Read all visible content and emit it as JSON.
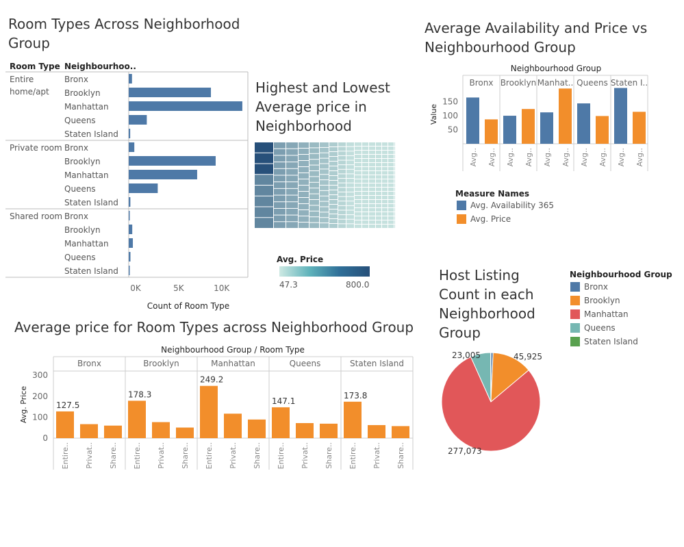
{
  "colors": {
    "blue": "#4e79a7",
    "orange": "#f28e2b",
    "red": "#e15759",
    "teal": "#76b7b2",
    "green": "#59a14f",
    "grid": "#e6e6e6"
  },
  "titles": {
    "room_types": "Room Types Across Neighborhood Group",
    "treemap": "Highest and Lowest Average price in Neighborhood",
    "availability": "Average Availability and Price vs Neighbourhood Group",
    "avg_price": "Average price for Room Types across Neighborhood Group",
    "host": "Host Listing Count in each Neighborhood Group"
  },
  "chart_data": [
    {
      "type": "bar",
      "id": "room_types",
      "col_headers": {
        "room_type": "Room Type",
        "neigh": "Neighbourhoo.."
      },
      "groups": [
        {
          "label": "Entire home/apt",
          "rows": [
            {
              "name": "Bronx",
              "value": 380
            },
            {
              "name": "Brooklyn",
              "value": 9550
            },
            {
              "name": "Manhattan",
              "value": 13200
            },
            {
              "name": "Queens",
              "value": 2100
            },
            {
              "name": "Staten Island",
              "value": 170
            }
          ]
        },
        {
          "label": "Private room",
          "rows": [
            {
              "name": "Bronx",
              "value": 650
            },
            {
              "name": "Brooklyn",
              "value": 10100
            },
            {
              "name": "Manhattan",
              "value": 7950
            },
            {
              "name": "Queens",
              "value": 3370
            },
            {
              "name": "Staten Island",
              "value": 190
            }
          ]
        },
        {
          "label": "Shared room",
          "rows": [
            {
              "name": "Bronx",
              "value": 60
            },
            {
              "name": "Brooklyn",
              "value": 410
            },
            {
              "name": "Manhattan",
              "value": 480
            },
            {
              "name": "Queens",
              "value": 200
            },
            {
              "name": "Staten Island",
              "value": 10
            }
          ]
        }
      ],
      "xticks": [
        "0K",
        "5K",
        "10K"
      ],
      "xtick_values": [
        0,
        5000,
        10000
      ],
      "xmax": 14000,
      "xlabel": "Count of Room Type"
    },
    {
      "type": "heatmap",
      "id": "treemap",
      "legend_title": "Avg. Price",
      "min_label": "47.3",
      "max_label": "800.0"
    },
    {
      "type": "bar",
      "id": "availability",
      "header": "Neighbourhood Group",
      "groups": [
        "Bronx",
        "Brooklyn",
        "Manhat..",
        "Queens",
        "Staten I.."
      ],
      "series": [
        {
          "name": "Avg. Availability 365",
          "values": [
            165,
            100,
            112,
            144,
            199
          ]
        },
        {
          "name": "Avg. Price",
          "values": [
            87,
            124,
            197,
            99,
            114
          ]
        }
      ],
      "xlabels": [
        "Avg..",
        "Avg.."
      ],
      "ylabel": "Value",
      "yticks": [
        50,
        100,
        150
      ],
      "ylim": [
        0,
        210
      ],
      "legend_title": "Measure Names"
    },
    {
      "type": "bar",
      "id": "avg_price",
      "header": "Neighbourhood Group  /  Room Type",
      "groups": [
        "Bronx",
        "Brooklyn",
        "Manhattan",
        "Queens",
        "Staten Island"
      ],
      "room_labels": [
        "Entire..",
        "Privat..",
        "Share.."
      ],
      "values": [
        [
          127.5,
          66.8,
          59.8
        ],
        [
          178.3,
          76.5,
          50.5
        ],
        [
          249.2,
          116.8,
          88.9
        ],
        [
          147.1,
          71.8,
          69.0
        ],
        [
          173.8,
          62.3,
          57.4
        ]
      ],
      "labels": [
        "127.5",
        "178.3",
        "249.2",
        "147.1",
        "173.8"
      ],
      "ylabel": "Avg. Price",
      "yticks": [
        0,
        100,
        200,
        300
      ],
      "ylim": [
        0,
        320
      ]
    },
    {
      "type": "pie",
      "id": "host",
      "legend_title": "Neighbourhood Group",
      "slices": [
        {
          "name": "Bronx",
          "value": 2500
        },
        {
          "name": "Brooklyn",
          "value": 45925
        },
        {
          "name": "Manhattan",
          "value": 277073
        },
        {
          "name": "Queens",
          "value": 23005
        },
        {
          "name": "Staten Island",
          "value": 380
        }
      ],
      "labels": {
        "brooklyn": "45,925",
        "manhattan": "277,073",
        "queens": "23,005"
      }
    }
  ]
}
